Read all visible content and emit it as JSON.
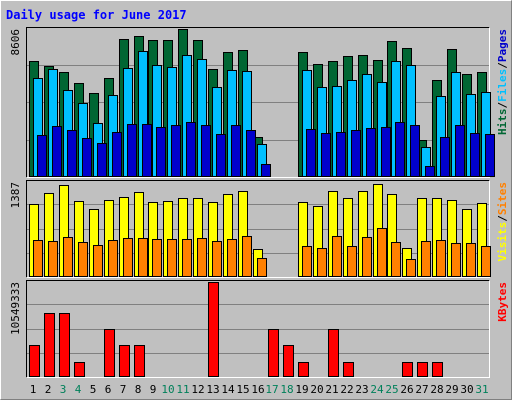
{
  "chart_data": {
    "type": "bar",
    "title": "Daily usage for June 2017",
    "categories": [
      "1",
      "2",
      "3",
      "4",
      "5",
      "6",
      "7",
      "8",
      "9",
      "10",
      "11",
      "12",
      "13",
      "14",
      "15",
      "16",
      "17",
      "18",
      "19",
      "20",
      "21",
      "22",
      "23",
      "24",
      "25",
      "26",
      "27",
      "28",
      "29",
      "30",
      "31"
    ],
    "weekend_days": [
      "3",
      "4",
      "10",
      "11",
      "17",
      "18",
      "24",
      "25",
      "31"
    ],
    "panels": [
      {
        "id": "hits",
        "ymax_label": "8606",
        "ylim": [
          0,
          8606
        ],
        "legend": [
          "Hits",
          "/",
          "Files",
          "/",
          "Pages"
        ],
        "series": [
          {
            "name": "Hits",
            "color": "#006633",
            "values": [
              6740,
              6450,
              6100,
              5460,
              4900,
              5750,
              8040,
              8220,
              7980,
              7960,
              8600,
              7960,
              6280,
              7280,
              7360,
              2320,
              0,
              0,
              7270,
              6560,
              6760,
              7050,
              7120,
              6780,
              7930,
              7490,
              2150,
              5620,
              7460,
              6000,
              6090
            ]
          },
          {
            "name": "Files",
            "color": "#00C0FF",
            "values": [
              5780,
              6270,
              5080,
              4300,
              3130,
              4740,
              6330,
              7300,
              6500,
              6400,
              7080,
              6870,
              5220,
              6230,
              6150,
              1930,
              0,
              0,
              6200,
              5230,
              5270,
              5660,
              6000,
              5550,
              6720,
              6510,
              1750,
              4700,
              6090,
              4800,
              4920
            ]
          },
          {
            "name": "Pages",
            "color": "#0000CC",
            "values": [
              2450,
              2960,
              2740,
              2240,
              1980,
              2640,
              3090,
              3080,
              2910,
              3050,
              3220,
              3000,
              2510,
              3000,
              2730,
              750,
              0,
              0,
              2790,
              2540,
              2630,
              2760,
              2870,
              2910,
              3190,
              3020,
              650,
              2320,
              3040,
              2540,
              2510
            ]
          }
        ]
      },
      {
        "id": "visits",
        "ymax_label": "1387",
        "ylim": [
          0,
          1387
        ],
        "legend": [
          "Visits",
          "/",
          "Sites"
        ],
        "series": [
          {
            "name": "Visits",
            "color": "#FFFF00",
            "values": [
              1060,
              1230,
              1340,
              1110,
              1000,
              1130,
              1170,
              1240,
              1100,
              1110,
              1160,
              1150,
              1100,
              1210,
              1250,
              410,
              0,
              0,
              1100,
              1030,
              1250,
              1150,
              1250,
              1360,
              1210,
              430,
              1160,
              1160,
              1130,
              1000,
              1080
            ]
          },
          {
            "name": "Sites",
            "color": "#FF8000",
            "values": [
              540,
              530,
              590,
              510,
              460,
              540,
              570,
              570,
              550,
              550,
              550,
              570,
              530,
              550,
              600,
              280,
              0,
              0,
              450,
              430,
              600,
              450,
              580,
              720,
              510,
              260,
              520,
              540,
              500,
              490,
              450
            ]
          }
        ]
      },
      {
        "id": "kbytes",
        "ymax_label": "10549333",
        "ylim": [
          0,
          10549333
        ],
        "legend": [
          "KBytes"
        ],
        "series": [
          {
            "name": "KBytes",
            "color": "#FF0000",
            "values": [
              3500000,
              7100000,
              7100000,
              1700000,
              0,
              5300000,
              3500000,
              3500000,
              0,
              0,
              0,
              0,
              10549333,
              0,
              0,
              0,
              5300000,
              3500000,
              1700000,
              0,
              5300000,
              1700000,
              0,
              0,
              0,
              1700000,
              1700000,
              1700000,
              0,
              0,
              0
            ]
          }
        ]
      }
    ]
  }
}
